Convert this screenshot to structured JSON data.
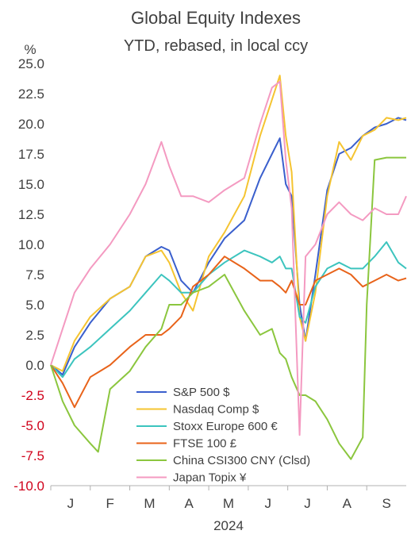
{
  "chart_data": {
    "type": "line",
    "title": "Global Equity Indexes",
    "subtitle": "YTD, rebased, in local ccy",
    "ylabel": "%",
    "xlabel": "2024",
    "ylim": [
      -10,
      25
    ],
    "yticks": [
      "25.0",
      "22.5",
      "20.0",
      "17.5",
      "15.0",
      "12.5",
      "10.0",
      "7.5",
      "5.0",
      "2.5",
      "0.0",
      "-2.5",
      "-5.0",
      "-7.5",
      "-10.0"
    ],
    "xticks": [
      "J",
      "F",
      "M",
      "A",
      "M",
      "J",
      "J",
      "A",
      "S"
    ],
    "grid": false,
    "legend_position": "bottom-center",
    "series": [
      {
        "name": "S&P 500 $",
        "color": "#3a5fcd",
        "points": [
          [
            0,
            0
          ],
          [
            0.3,
            -0.8
          ],
          [
            0.6,
            1.5
          ],
          [
            1,
            3.5
          ],
          [
            1.5,
            5.5
          ],
          [
            2,
            6.5
          ],
          [
            2.4,
            9
          ],
          [
            2.8,
            9.8
          ],
          [
            3,
            9.5
          ],
          [
            3.3,
            7
          ],
          [
            3.6,
            6
          ],
          [
            4,
            8.5
          ],
          [
            4.4,
            10.5
          ],
          [
            4.9,
            12
          ],
          [
            5.3,
            15.5
          ],
          [
            5.6,
            17.5
          ],
          [
            5.8,
            18.8
          ],
          [
            5.95,
            15
          ],
          [
            6.1,
            14
          ],
          [
            6.3,
            5
          ],
          [
            6.45,
            2
          ],
          [
            6.7,
            7.5
          ],
          [
            7,
            14.5
          ],
          [
            7.3,
            17.5
          ],
          [
            7.6,
            18
          ],
          [
            7.9,
            19
          ],
          [
            8.2,
            19.7
          ],
          [
            8.5,
            20
          ],
          [
            8.8,
            20.5
          ],
          [
            9,
            20.3
          ]
        ]
      },
      {
        "name": "Nasdaq Comp $",
        "color": "#f5c431",
        "points": [
          [
            0,
            0
          ],
          [
            0.3,
            -0.5
          ],
          [
            0.6,
            2
          ],
          [
            1,
            4
          ],
          [
            1.5,
            5.5
          ],
          [
            2,
            6.5
          ],
          [
            2.4,
            9
          ],
          [
            2.8,
            9.5
          ],
          [
            3,
            8.5
          ],
          [
            3.3,
            6
          ],
          [
            3.6,
            4.5
          ],
          [
            4,
            9
          ],
          [
            4.4,
            11
          ],
          [
            4.9,
            14
          ],
          [
            5.3,
            19
          ],
          [
            5.6,
            22
          ],
          [
            5.8,
            24
          ],
          [
            5.95,
            19
          ],
          [
            6.1,
            16
          ],
          [
            6.3,
            4
          ],
          [
            6.45,
            2
          ],
          [
            6.7,
            6
          ],
          [
            7,
            14
          ],
          [
            7.3,
            18.5
          ],
          [
            7.6,
            17
          ],
          [
            7.9,
            19
          ],
          [
            8.2,
            19.5
          ],
          [
            8.5,
            20.5
          ],
          [
            8.8,
            20.3
          ],
          [
            9,
            20.5
          ]
        ]
      },
      {
        "name": "Stoxx Europe 600 €",
        "color": "#3cc4be",
        "points": [
          [
            0,
            0
          ],
          [
            0.3,
            -1
          ],
          [
            0.6,
            0.5
          ],
          [
            1,
            1.5
          ],
          [
            1.5,
            3
          ],
          [
            2,
            4.5
          ],
          [
            2.4,
            6
          ],
          [
            2.8,
            7.5
          ],
          [
            3,
            7
          ],
          [
            3.3,
            6
          ],
          [
            3.6,
            6
          ],
          [
            4,
            7.5
          ],
          [
            4.4,
            8.5
          ],
          [
            4.9,
            9.5
          ],
          [
            5.3,
            9
          ],
          [
            5.6,
            8.5
          ],
          [
            5.8,
            9
          ],
          [
            5.95,
            8
          ],
          [
            6.1,
            8
          ],
          [
            6.3,
            4
          ],
          [
            6.45,
            3.5
          ],
          [
            6.7,
            6.5
          ],
          [
            7,
            8
          ],
          [
            7.3,
            8.5
          ],
          [
            7.6,
            8
          ],
          [
            7.9,
            8
          ],
          [
            8.2,
            9
          ],
          [
            8.5,
            10.2
          ],
          [
            8.8,
            8.5
          ],
          [
            9,
            8
          ]
        ]
      },
      {
        "name": "FTSE 100 £",
        "color": "#e8631a",
        "points": [
          [
            0,
            0
          ],
          [
            0.3,
            -1.5
          ],
          [
            0.6,
            -3.5
          ],
          [
            1,
            -1
          ],
          [
            1.5,
            0
          ],
          [
            2,
            1.5
          ],
          [
            2.4,
            2.5
          ],
          [
            2.8,
            2.5
          ],
          [
            3,
            3
          ],
          [
            3.3,
            4
          ],
          [
            3.6,
            6.5
          ],
          [
            4,
            7.5
          ],
          [
            4.4,
            9
          ],
          [
            4.9,
            8
          ],
          [
            5.3,
            7
          ],
          [
            5.6,
            7
          ],
          [
            5.8,
            6.5
          ],
          [
            5.95,
            6
          ],
          [
            6.1,
            7
          ],
          [
            6.3,
            5
          ],
          [
            6.45,
            5
          ],
          [
            6.7,
            7
          ],
          [
            7,
            7.5
          ],
          [
            7.3,
            8
          ],
          [
            7.6,
            7.5
          ],
          [
            7.9,
            6.5
          ],
          [
            8.2,
            7
          ],
          [
            8.5,
            7.5
          ],
          [
            8.8,
            7
          ],
          [
            9,
            7.2
          ]
        ]
      },
      {
        "name": "China CSI300 CNY (Clsd)",
        "color": "#8bc63e",
        "points": [
          [
            0,
            0
          ],
          [
            0.3,
            -3
          ],
          [
            0.6,
            -5
          ],
          [
            1,
            -6.5
          ],
          [
            1.2,
            -7.2
          ],
          [
            1.5,
            -2
          ],
          [
            2,
            -0.5
          ],
          [
            2.4,
            1.5
          ],
          [
            2.8,
            3
          ],
          [
            3,
            5
          ],
          [
            3.3,
            5
          ],
          [
            3.6,
            6
          ],
          [
            4,
            6.5
          ],
          [
            4.4,
            7.5
          ],
          [
            4.9,
            4.5
          ],
          [
            5.3,
            2.5
          ],
          [
            5.6,
            3
          ],
          [
            5.8,
            1
          ],
          [
            5.95,
            0.5
          ],
          [
            6.1,
            -1
          ],
          [
            6.3,
            -2.5
          ],
          [
            6.45,
            -2.5
          ],
          [
            6.7,
            -3
          ],
          [
            7,
            -4.5
          ],
          [
            7.3,
            -6.5
          ],
          [
            7.6,
            -7.8
          ],
          [
            7.9,
            -6
          ],
          [
            8.0,
            5
          ],
          [
            8.2,
            17
          ],
          [
            8.5,
            17.2
          ],
          [
            8.8,
            17.2
          ],
          [
            9,
            17.2
          ]
        ]
      },
      {
        "name": "Japan Topix ¥",
        "color": "#f49ac1",
        "points": [
          [
            0,
            0
          ],
          [
            0.3,
            3
          ],
          [
            0.6,
            6
          ],
          [
            1,
            8
          ],
          [
            1.5,
            10
          ],
          [
            2,
            12.5
          ],
          [
            2.4,
            15
          ],
          [
            2.8,
            18.5
          ],
          [
            3,
            16.5
          ],
          [
            3.3,
            14
          ],
          [
            3.6,
            14
          ],
          [
            4,
            13.5
          ],
          [
            4.4,
            14.5
          ],
          [
            4.9,
            15.5
          ],
          [
            5.3,
            20
          ],
          [
            5.6,
            23
          ],
          [
            5.8,
            23.5
          ],
          [
            5.95,
            17
          ],
          [
            6.1,
            13
          ],
          [
            6.3,
            -5.8
          ],
          [
            6.45,
            9
          ],
          [
            6.7,
            10
          ],
          [
            7,
            12.5
          ],
          [
            7.3,
            13.5
          ],
          [
            7.6,
            12.5
          ],
          [
            7.9,
            12
          ],
          [
            8.2,
            13
          ],
          [
            8.5,
            12.5
          ],
          [
            8.8,
            12.5
          ],
          [
            9,
            14
          ]
        ]
      }
    ]
  }
}
